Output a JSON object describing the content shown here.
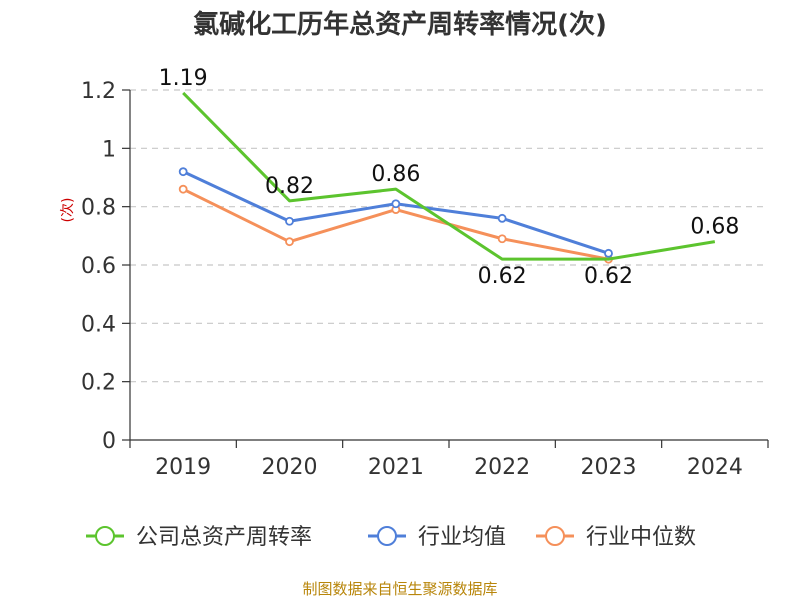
{
  "chart_data": {
    "type": "line",
    "title": "氯碱化工历年总资产周转率情况(次)",
    "ylabel": "(次)",
    "xlabel": "",
    "categories": [
      "2019",
      "2020",
      "2021",
      "2022",
      "2023",
      "2024"
    ],
    "y_ticks": [
      "0",
      "0.2",
      "0.4",
      "0.6",
      "0.8",
      "1",
      "1.2"
    ],
    "ylim": [
      0,
      1.2
    ],
    "grid": true,
    "legend_position": "bottom",
    "series": [
      {
        "name": "公司总资产周转率",
        "color": "#5cc42e",
        "values": [
          1.19,
          0.82,
          0.86,
          0.62,
          0.62,
          0.68
        ],
        "labels": [
          "1.19",
          "0.82",
          "0.86",
          "0.62",
          "0.62",
          "0.68"
        ]
      },
      {
        "name": "行业均值",
        "color": "#4f7fd9",
        "values": [
          0.92,
          0.75,
          0.81,
          0.76,
          0.64,
          null
        ]
      },
      {
        "name": "行业中位数",
        "color": "#f5905a",
        "values": [
          0.86,
          0.68,
          0.79,
          0.69,
          0.62,
          null
        ]
      }
    ]
  },
  "source": "制图数据来自恒生聚源数据库"
}
